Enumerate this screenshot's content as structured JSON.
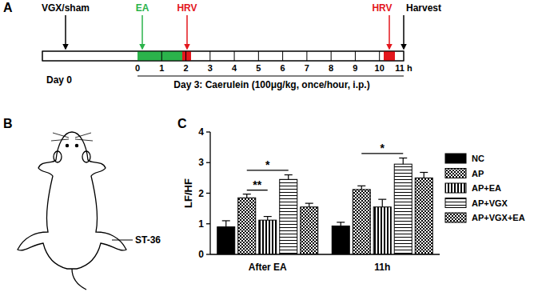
{
  "panel_labels": [
    "A",
    "B",
    "C"
  ],
  "timeline": {
    "start_label": "VGX/sham",
    "ea_label": "EA",
    "hrv_labels": [
      "HRV",
      "HRV"
    ],
    "end_label": "Harvest",
    "day0_label": "Day 0",
    "hour_ticks": [
      "0",
      "1",
      "2",
      "3",
      "4",
      "5",
      "6",
      "7",
      "8",
      "9",
      "10",
      "11 h"
    ],
    "caption": "Day 3: Caerulein (100μg/kg, once/hour, i.p.)"
  },
  "mouse": {
    "acupoint_label": "ST-36"
  },
  "chart_data": {
    "type": "bar",
    "ylabel": "LF/HF",
    "categories": [
      "After EA",
      "11h"
    ],
    "ylim": [
      0,
      4
    ],
    "yticks": [
      0,
      1,
      2,
      3,
      4
    ],
    "legend": "right",
    "series": [
      {
        "name": "NC",
        "color": "#000000",
        "values": [
          0.9,
          0.93
        ],
        "errors": [
          0.2,
          0.12
        ]
      },
      {
        "name": "AP",
        "color": "#000000",
        "values": [
          1.85,
          2.12
        ],
        "errors": [
          0.12,
          0.12
        ]
      },
      {
        "name": "AP+EA",
        "color": "#000000",
        "values": [
          1.12,
          1.55
        ],
        "errors": [
          0.12,
          0.25
        ]
      },
      {
        "name": "AP+VGX",
        "color": "#000000",
        "values": [
          2.45,
          2.95
        ],
        "errors": [
          0.15,
          0.2
        ]
      },
      {
        "name": "AP+VGX+EA",
        "color": "#000000",
        "values": [
          1.55,
          2.5
        ],
        "errors": [
          0.12,
          0.18
        ]
      }
    ],
    "annotations": [
      {
        "text": "*",
        "category": 0,
        "from": 1,
        "to": 3,
        "y": 2.75
      },
      {
        "text": "**",
        "category": 0,
        "from": 1,
        "to": 2,
        "y": 2.1
      },
      {
        "text": "*",
        "category": 1,
        "from": 1,
        "to": 3,
        "y": 3.3
      }
    ]
  }
}
